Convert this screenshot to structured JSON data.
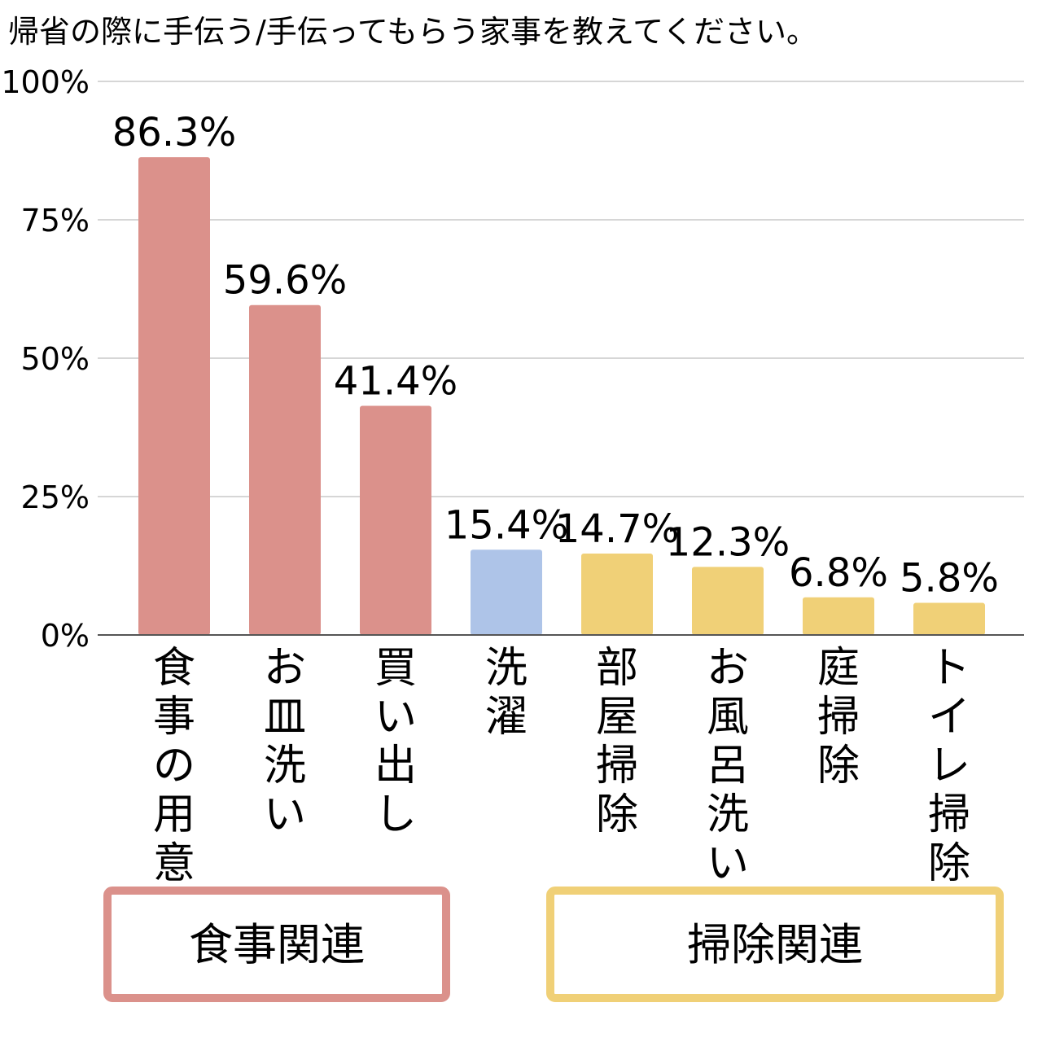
{
  "chart_data": {
    "type": "bar",
    "title": "帰省の際に手伝う/手伝ってもらう家事を教えてください。",
    "xlabel": "",
    "ylabel": "",
    "ylim": [
      0,
      100
    ],
    "y_ticks": [
      "0%",
      "25%",
      "50%",
      "75%",
      "100%"
    ],
    "categories": [
      "食事の用意",
      "お皿洗い",
      "買い出し",
      "洗濯",
      "部屋掃除",
      "お風呂洗い",
      "庭掃除",
      "トイレ掃除"
    ],
    "values": [
      86.3,
      59.6,
      41.4,
      15.4,
      14.7,
      12.3,
      6.8,
      5.8
    ],
    "value_labels": [
      "86.3%",
      "59.6%",
      "41.4%",
      "15.4%",
      "14.7%",
      "12.3%",
      "6.8%",
      "5.8%"
    ],
    "bar_colors": [
      "#db918b",
      "#db918b",
      "#db918b",
      "#aec4e8",
      "#f0d077",
      "#f0d077",
      "#f0d077",
      "#f0d077"
    ],
    "grid": true,
    "groups": [
      {
        "label": "食事関連",
        "color": "#db918b",
        "from": 0,
        "to": 2
      },
      {
        "label": "掃除関連",
        "color": "#f0d077",
        "from": 4,
        "to": 7
      }
    ]
  }
}
